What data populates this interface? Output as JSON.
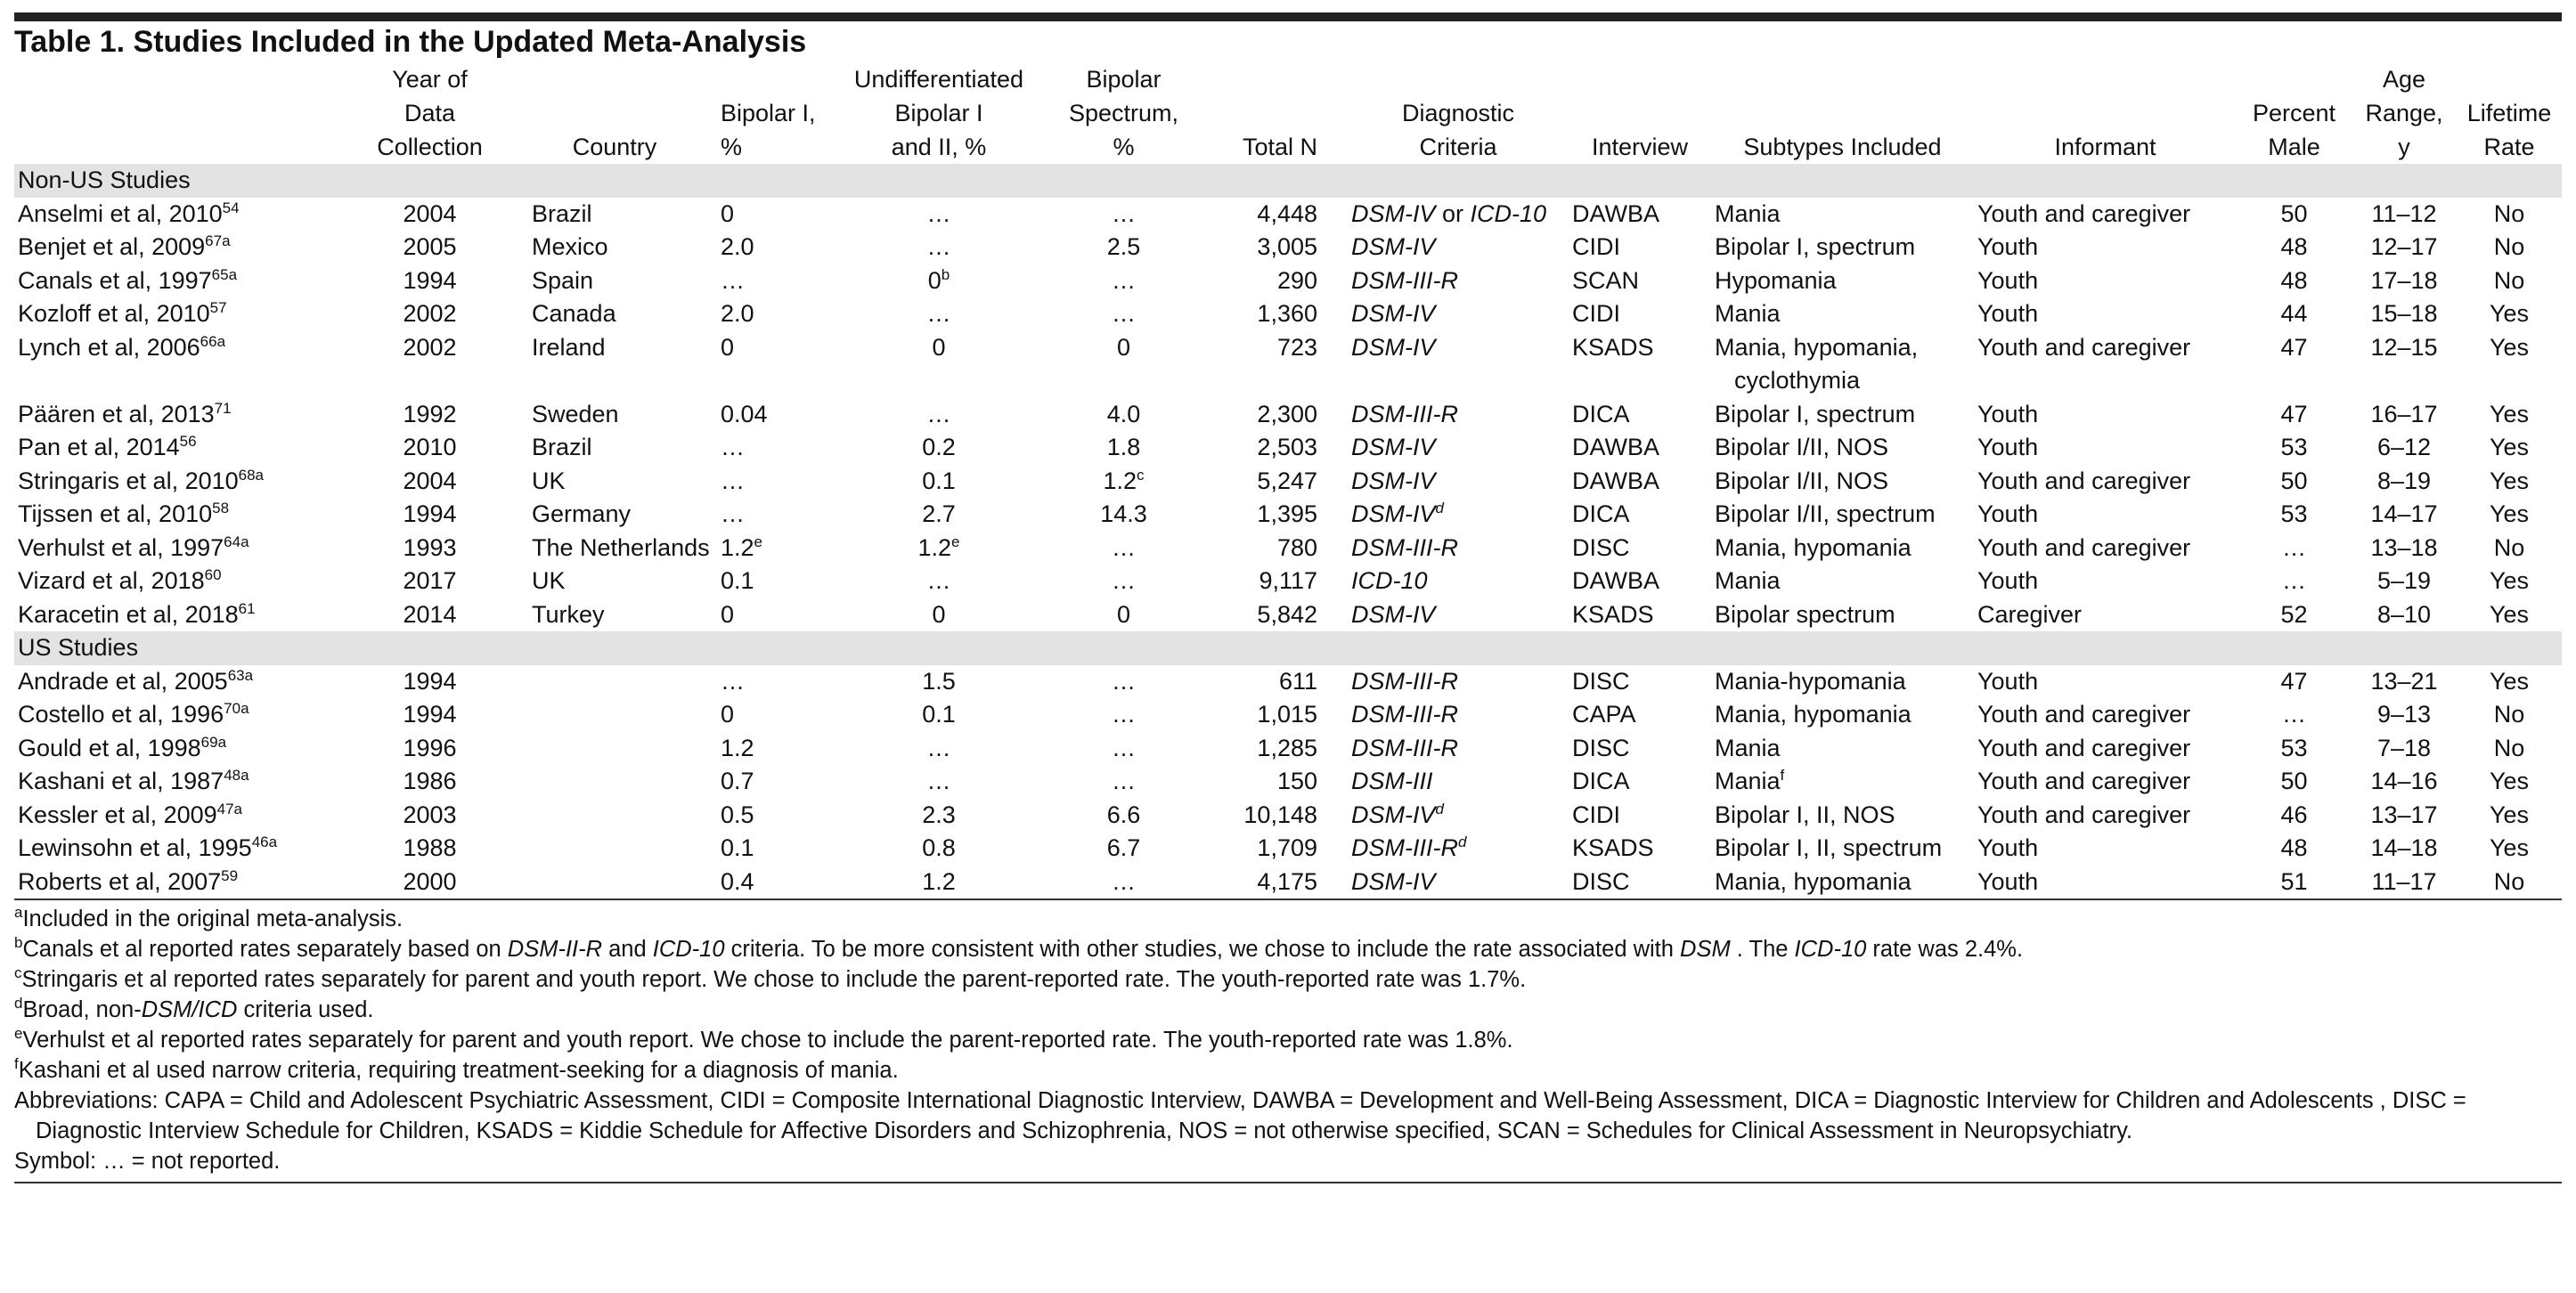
{
  "title": "Table 1. Studies Included in the Updated Meta-Analysis",
  "columns": [
    [],
    [
      "Year of",
      "Data",
      "Collection"
    ],
    [
      "Country"
    ],
    [
      "Bipolar I,",
      "%"
    ],
    [
      "Undifferentiated",
      "Bipolar I",
      "and II, %"
    ],
    [
      "Bipolar",
      "Spectrum,",
      "%"
    ],
    [
      "Total N"
    ],
    [
      "Diagnostic",
      "Criteria"
    ],
    [
      "Interview"
    ],
    [
      "Subtypes Included"
    ],
    [
      "Informant"
    ],
    [
      "Percent",
      "Male"
    ],
    [
      "Age",
      "Range,",
      "y"
    ],
    [
      "Lifetime",
      "Rate"
    ]
  ],
  "sections": [
    {
      "label": "Non-US Studies",
      "rows": [
        [
          [
            {
              "t": "Anselmi et al, 2010"
            },
            {
              "t": "54",
              "sup": true
            }
          ],
          "2004",
          "Brazil",
          "0",
          "…",
          "…",
          "4,448",
          [
            {
              "t": "DSM-IV"
            },
            {
              "t": " or ",
              "roman": true
            },
            {
              "t": "ICD-10"
            }
          ],
          "DAWBA",
          "Mania",
          "Youth and caregiver",
          "50",
          "11–12",
          "No"
        ],
        [
          [
            {
              "t": "Benjet et al, 2009"
            },
            {
              "t": "67a",
              "sup": true
            }
          ],
          "2005",
          "Mexico",
          "2.0",
          "…",
          "2.5",
          "3,005",
          "DSM-IV",
          "CIDI",
          "Bipolar I, spectrum",
          "Youth",
          "48",
          "12–17",
          "No"
        ],
        [
          [
            {
              "t": "Canals et al, 1997"
            },
            {
              "t": "65a",
              "sup": true
            }
          ],
          "1994",
          "Spain",
          "…",
          [
            {
              "t": "0"
            },
            {
              "t": "b",
              "sup": true
            }
          ],
          "…",
          "290",
          "DSM-III-R",
          "SCAN",
          "Hypomania",
          "Youth",
          "48",
          "17–18",
          "No"
        ],
        [
          [
            {
              "t": "Kozloff et al, 2010"
            },
            {
              "t": "57",
              "sup": true
            }
          ],
          "2002",
          "Canada",
          "2.0",
          "…",
          "…",
          "1,360",
          "DSM-IV",
          "CIDI",
          "Mania",
          "Youth",
          "44",
          "15–18",
          "Yes"
        ],
        [
          [
            {
              "t": "Lynch et al, 2006"
            },
            {
              "t": "66a",
              "sup": true
            }
          ],
          "2002",
          "Ireland",
          "0",
          "0",
          "0",
          "723",
          "DSM-IV",
          "KSADS",
          [
            "Mania, hypomania,",
            "cyclothymia"
          ],
          "Youth and caregiver",
          "47",
          "12–15",
          "Yes"
        ],
        [
          [
            {
              "t": "Päären et al, 2013"
            },
            {
              "t": "71",
              "sup": true
            }
          ],
          "1992",
          "Sweden",
          "0.04",
          "…",
          "4.0",
          "2,300",
          "DSM-III-R",
          "DICA",
          "Bipolar I, spectrum",
          "Youth",
          "47",
          "16–17",
          "Yes"
        ],
        [
          [
            {
              "t": "Pan et al, 2014"
            },
            {
              "t": "56",
              "sup": true
            }
          ],
          "2010",
          "Brazil",
          "…",
          "0.2",
          "1.8",
          "2,503",
          "DSM-IV",
          "DAWBA",
          "Bipolar I/II, NOS",
          "Youth",
          "53",
          "6–12",
          "Yes"
        ],
        [
          [
            {
              "t": "Stringaris et al, 2010"
            },
            {
              "t": "68a",
              "sup": true
            }
          ],
          "2004",
          "UK",
          "…",
          "0.1",
          [
            {
              "t": "1.2"
            },
            {
              "t": "c",
              "sup": true
            }
          ],
          "5,247",
          "DSM-IV",
          "DAWBA",
          "Bipolar I/II, NOS",
          "Youth and caregiver",
          "50",
          "8–19",
          "Yes"
        ],
        [
          [
            {
              "t": "Tijssen et al, 2010"
            },
            {
              "t": "58",
              "sup": true
            }
          ],
          "1994",
          "Germany",
          "…",
          "2.7",
          "14.3",
          "1,395",
          [
            {
              "t": "DSM-IV"
            },
            {
              "t": "d",
              "sup": true
            }
          ],
          "DICA",
          "Bipolar I/II, spectrum",
          "Youth",
          "53",
          "14–17",
          "Yes"
        ],
        [
          [
            {
              "t": "Verhulst et al, 1997"
            },
            {
              "t": "64a",
              "sup": true
            }
          ],
          "1993",
          "The Netherlands",
          [
            {
              "t": "1.2"
            },
            {
              "t": "e",
              "sup": true
            }
          ],
          [
            {
              "t": "1.2"
            },
            {
              "t": "e",
              "sup": true
            }
          ],
          "…",
          "780",
          "DSM-III-R",
          "DISC",
          "Mania, hypomania",
          "Youth and caregiver",
          "…",
          "13–18",
          "No"
        ],
        [
          [
            {
              "t": "Vizard et al, 2018"
            },
            {
              "t": "60",
              "sup": true
            }
          ],
          "2017",
          "UK",
          "0.1",
          "…",
          "…",
          "9,117",
          "ICD-10",
          "DAWBA",
          "Mania",
          "Youth",
          "…",
          "5–19",
          "Yes"
        ],
        [
          [
            {
              "t": "Karacetin et al, 2018"
            },
            {
              "t": "61",
              "sup": true
            }
          ],
          "2014",
          "Turkey",
          "0",
          "0",
          "0",
          "5,842",
          "DSM-IV",
          "KSADS",
          "Bipolar spectrum",
          "Caregiver",
          "52",
          "8–10",
          "Yes"
        ]
      ]
    },
    {
      "label": "US Studies",
      "rows": [
        [
          [
            {
              "t": "Andrade et al, 2005"
            },
            {
              "t": "63a",
              "sup": true
            }
          ],
          "1994",
          null,
          "…",
          "1.5",
          "…",
          "611",
          "DSM-III-R",
          "DISC",
          "Mania-hypomania",
          "Youth",
          "47",
          "13–21",
          "Yes"
        ],
        [
          [
            {
              "t": "Costello et al, 1996"
            },
            {
              "t": "70a",
              "sup": true
            }
          ],
          "1994",
          null,
          "0",
          "0.1",
          "…",
          "1,015",
          "DSM-III-R",
          "CAPA",
          "Mania, hypomania",
          "Youth and caregiver",
          "…",
          "9–13",
          "No"
        ],
        [
          [
            {
              "t": "Gould et al, 1998"
            },
            {
              "t": "69a",
              "sup": true
            }
          ],
          "1996",
          null,
          "1.2",
          "…",
          "…",
          "1,285",
          "DSM-III-R",
          "DISC",
          "Mania",
          "Youth and caregiver",
          "53",
          "7–18",
          "No"
        ],
        [
          [
            {
              "t": "Kashani et al, 1987"
            },
            {
              "t": "48a",
              "sup": true
            }
          ],
          "1986",
          null,
          "0.7",
          "…",
          "…",
          "150",
          "DSM-III",
          "DICA",
          [
            {
              "t": "Mania"
            },
            {
              "t": "f",
              "sup": true
            }
          ],
          "Youth and caregiver",
          "50",
          "14–16",
          "Yes"
        ],
        [
          [
            {
              "t": "Kessler et al, 2009"
            },
            {
              "t": "47a",
              "sup": true
            }
          ],
          "2003",
          null,
          "0.5",
          "2.3",
          "6.6",
          "10,148",
          [
            {
              "t": "DSM-IV"
            },
            {
              "t": "d",
              "sup": true
            }
          ],
          "CIDI",
          "Bipolar I, II, NOS",
          "Youth and caregiver",
          "46",
          "13–17",
          "Yes"
        ],
        [
          [
            {
              "t": "Lewinsohn et al, 1995"
            },
            {
              "t": "46a",
              "sup": true
            }
          ],
          "1988",
          null,
          "0.1",
          "0.8",
          "6.7",
          "1,709",
          [
            {
              "t": "DSM-III-R"
            },
            {
              "t": "d",
              "sup": true
            }
          ],
          "KSADS",
          "Bipolar I, II, spectrum",
          "Youth",
          "48",
          "14–18",
          "Yes"
        ],
        [
          [
            {
              "t": "Roberts et al, 2007"
            },
            {
              "t": "59",
              "sup": true
            }
          ],
          "2000",
          null,
          "0.4",
          "1.2",
          "…",
          "4,175",
          "DSM-IV",
          "DISC",
          "Mania, hypomania",
          "Youth",
          "51",
          "11–17",
          "No"
        ]
      ]
    }
  ],
  "footnotes": [
    [
      {
        "t": "a",
        "sup": true
      },
      {
        "t": "Included in the original meta-analysis."
      }
    ],
    [
      {
        "t": "b",
        "sup": true
      },
      {
        "t": "Canals et al reported rates separately based on "
      },
      {
        "t": "DSM-II-R",
        "i": true
      },
      {
        "t": " and "
      },
      {
        "t": "ICD-10",
        "i": true
      },
      {
        "t": " criteria. To be more consistent with other studies, we chose to include the rate associated with "
      },
      {
        "t": "DSM",
        "i": true
      },
      {
        "t": " . The "
      },
      {
        "t": "ICD-10",
        "i": true
      },
      {
        "t": " rate was 2.4%."
      }
    ],
    [
      {
        "t": "c",
        "sup": true
      },
      {
        "t": "Stringaris et al reported rates separately for parent and youth report. We chose to include the parent-reported rate. The youth-reported rate was 1.7%."
      }
    ],
    [
      {
        "t": "d",
        "sup": true
      },
      {
        "t": "Broad, non-"
      },
      {
        "t": "DSM/ICD",
        "i": true
      },
      {
        "t": " criteria used."
      }
    ],
    [
      {
        "t": "e",
        "sup": true
      },
      {
        "t": "Verhulst et al reported rates separately for parent and youth report. We chose to include the parent-reported rate. The youth-reported rate was 1.8%."
      }
    ],
    [
      {
        "t": "f",
        "sup": true
      },
      {
        "t": "Kashani et al used narrow criteria, requiring treatment-seeking for a diagnosis of mania."
      }
    ],
    [
      {
        "t": "Abbreviations: CAPA = Child and Adolescent Psychiatric Assessment, CIDI = Composite International Diagnostic Interview, DAWBA = Development and Well-Being Assessment, DICA = Diagnostic Interview for Children and Adolescents , DISC = Diagnostic Interview Schedule for Children, KSADS = Kiddie Schedule for Affective Disorders and Schizophrenia, NOS = not otherwise specified, SCAN = Schedules for Clinical Assessment in Neuropsychiatry."
      }
    ],
    [
      {
        "t": "Symbol: … = not reported."
      }
    ]
  ]
}
